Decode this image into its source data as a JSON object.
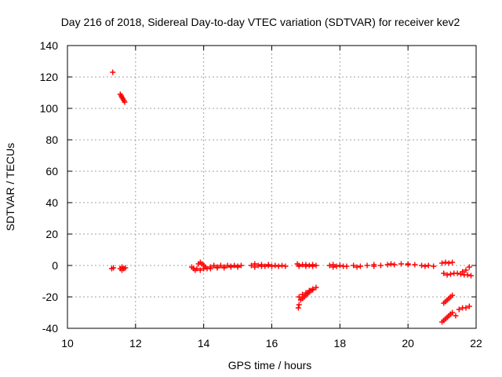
{
  "chart_data": {
    "type": "scatter",
    "title": "Day 216 of 2018, Sidereal Day-to-day VTEC variation (SDTVAR) for receiver kev2",
    "xlabel": "GPS time / hours",
    "ylabel": "SDTVAR / TECUs",
    "xlim": [
      10,
      22
    ],
    "ylim": [
      -40,
      140
    ],
    "xticks": [
      "10",
      "12",
      "14",
      "16",
      "18",
      "20",
      "22"
    ],
    "yticks": [
      "-40",
      "-20",
      "0",
      "20",
      "40",
      "60",
      "80",
      "100",
      "120",
      "140"
    ],
    "grid": true,
    "marker": "+",
    "color": "#ff0000",
    "series": [
      {
        "points": [
          [
            11.33,
            123
          ],
          [
            11.55,
            109
          ],
          [
            11.58,
            108
          ],
          [
            11.6,
            107
          ],
          [
            11.63,
            106
          ],
          [
            11.66,
            105
          ],
          [
            11.68,
            104
          ],
          [
            11.3,
            -2
          ],
          [
            11.35,
            -1.5
          ],
          [
            11.55,
            -2
          ],
          [
            11.6,
            -3
          ],
          [
            11.65,
            -2
          ],
          [
            11.7,
            -1.5
          ],
          [
            11.6,
            -1
          ],
          [
            13.65,
            -1
          ],
          [
            13.7,
            -2
          ],
          [
            13.75,
            -3
          ],
          [
            13.8,
            -2
          ],
          [
            13.85,
            1
          ],
          [
            13.9,
            2
          ],
          [
            13.95,
            1
          ],
          [
            14.0,
            0
          ],
          [
            14.05,
            -1
          ],
          [
            14.1,
            -2
          ],
          [
            14.2,
            -1
          ],
          [
            14.3,
            0
          ],
          [
            14.4,
            -1
          ],
          [
            14.5,
            0
          ],
          [
            14.6,
            -1
          ],
          [
            14.7,
            0
          ],
          [
            14.8,
            -1
          ],
          [
            14.9,
            0
          ],
          [
            15.0,
            -1
          ],
          [
            15.1,
            0
          ],
          [
            13.9,
            -3
          ],
          [
            14.0,
            -2
          ],
          [
            14.2,
            -2
          ],
          [
            14.4,
            -1.5
          ],
          [
            14.6,
            -1.5
          ],
          [
            14.8,
            -0.5
          ],
          [
            15.0,
            -0.5
          ],
          [
            15.4,
            0
          ],
          [
            15.5,
            1
          ],
          [
            15.6,
            0
          ],
          [
            15.7,
            0.5
          ],
          [
            15.8,
            -0.5
          ],
          [
            15.9,
            0
          ],
          [
            16.0,
            -0.5
          ],
          [
            16.1,
            0
          ],
          [
            16.2,
            -0.5
          ],
          [
            16.3,
            0
          ],
          [
            16.4,
            -0.5
          ],
          [
            15.5,
            -1
          ],
          [
            15.7,
            -0.5
          ],
          [
            15.9,
            0.5
          ],
          [
            16.75,
            1
          ],
          [
            16.8,
            0
          ],
          [
            16.9,
            0.5
          ],
          [
            17.0,
            -0.5
          ],
          [
            17.1,
            0
          ],
          [
            17.2,
            0.5
          ],
          [
            17.3,
            0
          ],
          [
            16.8,
            -0.5
          ],
          [
            17.0,
            0.5
          ],
          [
            17.2,
            -0.5
          ],
          [
            16.78,
            -27
          ],
          [
            16.8,
            -25
          ],
          [
            16.85,
            -22
          ],
          [
            16.9,
            -21
          ],
          [
            16.95,
            -20
          ],
          [
            17.0,
            -19
          ],
          [
            17.05,
            -18
          ],
          [
            17.1,
            -17
          ],
          [
            17.15,
            -16
          ],
          [
            17.2,
            -15.5
          ],
          [
            17.3,
            -14
          ],
          [
            16.8,
            -20
          ],
          [
            16.9,
            -18.5
          ],
          [
            17.0,
            -17.5
          ],
          [
            17.1,
            -16
          ],
          [
            17.2,
            -15
          ],
          [
            17.7,
            0
          ],
          [
            17.8,
            0.5
          ],
          [
            17.9,
            -0.5
          ],
          [
            18.0,
            0
          ],
          [
            18.2,
            -0.5
          ],
          [
            18.4,
            0
          ],
          [
            18.6,
            -0.5
          ],
          [
            18.8,
            0
          ],
          [
            19.0,
            -0.5
          ],
          [
            19.2,
            0
          ],
          [
            19.4,
            0.5
          ],
          [
            19.6,
            0.5
          ],
          [
            19.8,
            1
          ],
          [
            20.0,
            0.5
          ],
          [
            20.2,
            0.5
          ],
          [
            20.4,
            0
          ],
          [
            20.6,
            0
          ],
          [
            20.75,
            -0.5
          ],
          [
            17.8,
            -1
          ],
          [
            18.1,
            -0.5
          ],
          [
            18.5,
            -1
          ],
          [
            19.0,
            0.5
          ],
          [
            19.5,
            1
          ],
          [
            20.0,
            1
          ],
          [
            20.5,
            -0.5
          ],
          [
            21.0,
            1.5
          ],
          [
            21.1,
            2
          ],
          [
            21.2,
            1.5
          ],
          [
            21.3,
            2
          ],
          [
            21.05,
            -5
          ],
          [
            21.15,
            -6
          ],
          [
            21.25,
            -5.5
          ],
          [
            21.35,
            -5
          ],
          [
            21.45,
            -5
          ],
          [
            21.55,
            -5.5
          ],
          [
            21.65,
            -6
          ],
          [
            21.75,
            -6
          ],
          [
            21.85,
            -6.5
          ],
          [
            21.6,
            -4
          ],
          [
            21.7,
            -3
          ],
          [
            21.8,
            -1
          ],
          [
            21.05,
            -24
          ],
          [
            21.1,
            -23
          ],
          [
            21.15,
            -22
          ],
          [
            21.2,
            -21
          ],
          [
            21.25,
            -20
          ],
          [
            21.3,
            -19
          ],
          [
            21.0,
            -36
          ],
          [
            21.05,
            -35
          ],
          [
            21.1,
            -34
          ],
          [
            21.15,
            -33
          ],
          [
            21.2,
            -32
          ],
          [
            21.25,
            -31
          ],
          [
            21.3,
            -30
          ],
          [
            21.4,
            -32
          ],
          [
            21.5,
            -28
          ],
          [
            21.6,
            -27
          ],
          [
            21.7,
            -27
          ],
          [
            21.8,
            -26
          ]
        ]
      }
    ]
  }
}
